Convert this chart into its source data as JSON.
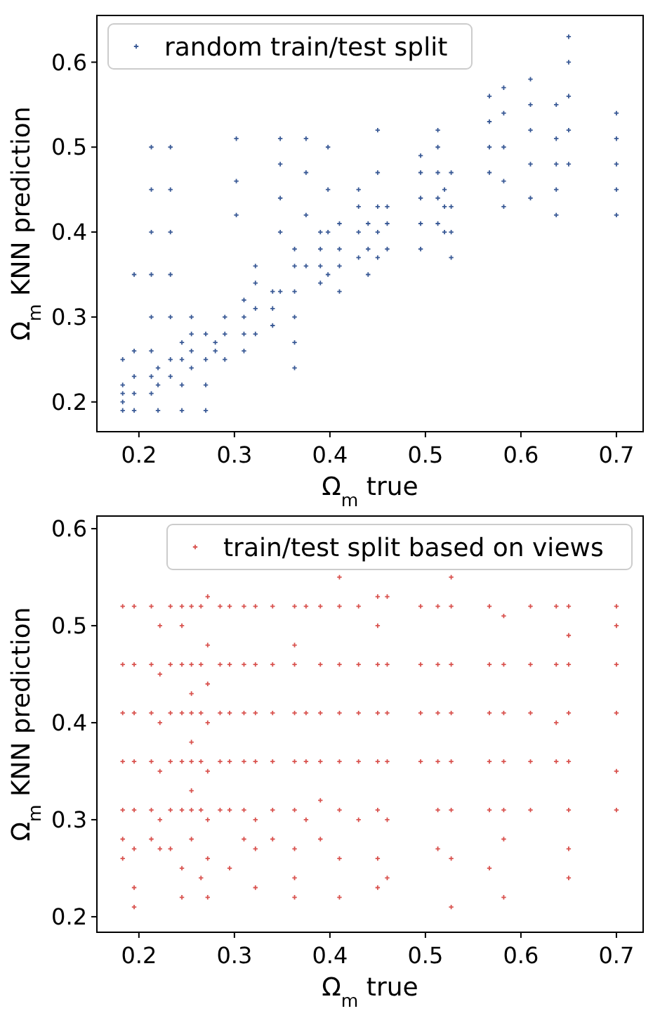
{
  "chart_data": [
    {
      "type": "scatter",
      "xlabel": "Ω$_{m}$ true",
      "ylabel": "Ω$_{m}$ KNN prediction",
      "xlim": [
        0.156,
        0.728
      ],
      "ylim": [
        0.165,
        0.655
      ],
      "xticks": [
        0.2,
        0.3,
        0.4,
        0.5,
        0.6,
        0.7
      ],
      "yticks": [
        0.2,
        0.3,
        0.4,
        0.5,
        0.6
      ],
      "grid": false,
      "legend": "top left",
      "marker": "cross",
      "series": [
        {
          "name": "random train/test split",
          "color": "#3a5a96",
          "x": [
            0.183,
            0.183,
            0.183,
            0.183,
            0.183,
            0.195,
            0.195,
            0.195,
            0.195,
            0.195,
            0.213,
            0.213,
            0.213,
            0.213,
            0.213,
            0.213,
            0.213,
            0.213,
            0.22,
            0.22,
            0.22,
            0.233,
            0.233,
            0.233,
            0.233,
            0.233,
            0.233,
            0.233,
            0.245,
            0.245,
            0.245,
            0.245,
            0.255,
            0.255,
            0.255,
            0.255,
            0.27,
            0.27,
            0.27,
            0.27,
            0.28,
            0.28,
            0.29,
            0.29,
            0.29,
            0.31,
            0.31,
            0.31,
            0.31,
            0.302,
            0.302,
            0.302,
            0.322,
            0.322,
            0.322,
            0.322,
            0.34,
            0.34,
            0.34,
            0.348,
            0.348,
            0.348,
            0.348,
            0.348,
            0.363,
            0.363,
            0.363,
            0.363,
            0.363,
            0.363,
            0.375,
            0.375,
            0.375,
            0.375,
            0.39,
            0.39,
            0.39,
            0.39,
            0.398,
            0.398,
            0.398,
            0.398,
            0.41,
            0.41,
            0.41,
            0.41,
            0.43,
            0.43,
            0.43,
            0.43,
            0.44,
            0.44,
            0.44,
            0.45,
            0.45,
            0.45,
            0.45,
            0.45,
            0.46,
            0.46,
            0.46,
            0.495,
            0.495,
            0.495,
            0.495,
            0.495,
            0.513,
            0.513,
            0.513,
            0.513,
            0.513,
            0.52,
            0.52,
            0.52,
            0.527,
            0.527,
            0.527,
            0.527,
            0.567,
            0.567,
            0.567,
            0.567,
            0.582,
            0.582,
            0.582,
            0.582,
            0.582,
            0.61,
            0.61,
            0.61,
            0.61,
            0.61,
            0.637,
            0.637,
            0.637,
            0.637,
            0.637,
            0.65,
            0.65,
            0.65,
            0.65,
            0.65,
            0.7,
            0.7,
            0.7,
            0.7,
            0.7
          ],
          "values": [
            0.19,
            0.2,
            0.21,
            0.22,
            0.25,
            0.19,
            0.21,
            0.23,
            0.26,
            0.35,
            0.21,
            0.23,
            0.26,
            0.3,
            0.35,
            0.4,
            0.45,
            0.5,
            0.19,
            0.22,
            0.24,
            0.23,
            0.25,
            0.3,
            0.35,
            0.4,
            0.45,
            0.5,
            0.19,
            0.22,
            0.25,
            0.27,
            0.24,
            0.26,
            0.28,
            0.3,
            0.19,
            0.22,
            0.25,
            0.28,
            0.26,
            0.27,
            0.25,
            0.28,
            0.3,
            0.26,
            0.28,
            0.3,
            0.32,
            0.42,
            0.46,
            0.51,
            0.28,
            0.31,
            0.34,
            0.36,
            0.29,
            0.31,
            0.33,
            0.33,
            0.4,
            0.44,
            0.48,
            0.51,
            0.24,
            0.27,
            0.3,
            0.33,
            0.36,
            0.38,
            0.36,
            0.42,
            0.47,
            0.51,
            0.34,
            0.36,
            0.38,
            0.4,
            0.35,
            0.4,
            0.45,
            0.5,
            0.33,
            0.36,
            0.38,
            0.41,
            0.37,
            0.4,
            0.43,
            0.45,
            0.35,
            0.38,
            0.41,
            0.37,
            0.4,
            0.43,
            0.47,
            0.52,
            0.38,
            0.41,
            0.43,
            0.38,
            0.41,
            0.44,
            0.47,
            0.49,
            0.41,
            0.44,
            0.47,
            0.5,
            0.52,
            0.4,
            0.43,
            0.45,
            0.37,
            0.4,
            0.43,
            0.47,
            0.47,
            0.5,
            0.53,
            0.56,
            0.43,
            0.46,
            0.5,
            0.54,
            0.57,
            0.44,
            0.48,
            0.52,
            0.55,
            0.58,
            0.42,
            0.45,
            0.48,
            0.51,
            0.55,
            0.48,
            0.52,
            0.56,
            0.6,
            0.63,
            0.42,
            0.45,
            0.48,
            0.51,
            0.54
          ]
        }
      ]
    },
    {
      "type": "scatter",
      "xlabel": "Ω$_{m}$ true",
      "ylabel": "Ω$_{m}$ KNN prediction",
      "xlim": [
        0.156,
        0.728
      ],
      "ylim": [
        0.184,
        0.613
      ],
      "xticks": [
        0.2,
        0.3,
        0.4,
        0.5,
        0.6,
        0.7
      ],
      "yticks": [
        0.2,
        0.3,
        0.4,
        0.5,
        0.6
      ],
      "grid": false,
      "legend": "top right",
      "marker": "cross",
      "series": [
        {
          "name": "train/test split based on views",
          "color": "#d9534f",
          "x": [
            0.183,
            0.183,
            0.183,
            0.183,
            0.183,
            0.183,
            0.183,
            0.195,
            0.195,
            0.195,
            0.195,
            0.195,
            0.195,
            0.195,
            0.195,
            0.213,
            0.213,
            0.213,
            0.213,
            0.213,
            0.213,
            0.222,
            0.222,
            0.222,
            0.222,
            0.222,
            0.222,
            0.233,
            0.233,
            0.233,
            0.233,
            0.233,
            0.233,
            0.245,
            0.245,
            0.245,
            0.245,
            0.245,
            0.245,
            0.245,
            0.245,
            0.255,
            0.255,
            0.255,
            0.255,
            0.255,
            0.255,
            0.255,
            0.255,
            0.255,
            0.265,
            0.265,
            0.265,
            0.265,
            0.265,
            0.265,
            0.272,
            0.272,
            0.272,
            0.272,
            0.272,
            0.272,
            0.272,
            0.272,
            0.285,
            0.285,
            0.285,
            0.285,
            0.285,
            0.295,
            0.295,
            0.295,
            0.295,
            0.295,
            0.295,
            0.31,
            0.31,
            0.31,
            0.31,
            0.31,
            0.31,
            0.322,
            0.322,
            0.322,
            0.322,
            0.322,
            0.322,
            0.322,
            0.34,
            0.34,
            0.34,
            0.34,
            0.34,
            0.34,
            0.363,
            0.363,
            0.363,
            0.363,
            0.363,
            0.363,
            0.363,
            0.363,
            0.363,
            0.375,
            0.375,
            0.375,
            0.375,
            0.39,
            0.39,
            0.39,
            0.39,
            0.39,
            0.39,
            0.41,
            0.41,
            0.41,
            0.41,
            0.41,
            0.41,
            0.41,
            0.41,
            0.43,
            0.43,
            0.43,
            0.43,
            0.43,
            0.45,
            0.45,
            0.45,
            0.45,
            0.45,
            0.45,
            0.45,
            0.45,
            0.46,
            0.46,
            0.46,
            0.46,
            0.46,
            0.46,
            0.495,
            0.495,
            0.495,
            0.495,
            0.513,
            0.513,
            0.513,
            0.513,
            0.513,
            0.513,
            0.527,
            0.527,
            0.527,
            0.527,
            0.527,
            0.527,
            0.527,
            0.527,
            0.567,
            0.567,
            0.567,
            0.567,
            0.567,
            0.567,
            0.582,
            0.582,
            0.582,
            0.582,
            0.582,
            0.582,
            0.582,
            0.61,
            0.61,
            0.61,
            0.61,
            0.61,
            0.637,
            0.637,
            0.637,
            0.637,
            0.65,
            0.65,
            0.65,
            0.65,
            0.65,
            0.65,
            0.65,
            0.65,
            0.7,
            0.7,
            0.7,
            0.7,
            0.7,
            0.7
          ],
          "values": [
            0.52,
            0.46,
            0.41,
            0.36,
            0.31,
            0.28,
            0.26,
            0.52,
            0.46,
            0.41,
            0.36,
            0.31,
            0.27,
            0.23,
            0.21,
            0.52,
            0.46,
            0.41,
            0.36,
            0.31,
            0.28,
            0.5,
            0.45,
            0.4,
            0.35,
            0.3,
            0.27,
            0.52,
            0.46,
            0.41,
            0.36,
            0.31,
            0.27,
            0.52,
            0.5,
            0.46,
            0.41,
            0.36,
            0.31,
            0.25,
            0.22,
            0.52,
            0.46,
            0.43,
            0.41,
            0.38,
            0.36,
            0.33,
            0.31,
            0.28,
            0.52,
            0.46,
            0.41,
            0.36,
            0.31,
            0.24,
            0.53,
            0.48,
            0.44,
            0.4,
            0.35,
            0.3,
            0.26,
            0.22,
            0.52,
            0.46,
            0.41,
            0.36,
            0.31,
            0.52,
            0.46,
            0.41,
            0.36,
            0.31,
            0.25,
            0.52,
            0.46,
            0.41,
            0.36,
            0.31,
            0.28,
            0.52,
            0.46,
            0.41,
            0.36,
            0.3,
            0.27,
            0.23,
            0.52,
            0.46,
            0.41,
            0.36,
            0.31,
            0.28,
            0.52,
            0.48,
            0.46,
            0.41,
            0.36,
            0.31,
            0.27,
            0.24,
            0.22,
            0.52,
            0.41,
            0.36,
            0.3,
            0.52,
            0.46,
            0.41,
            0.36,
            0.32,
            0.28,
            0.55,
            0.52,
            0.46,
            0.41,
            0.36,
            0.31,
            0.26,
            0.22,
            0.52,
            0.46,
            0.41,
            0.36,
            0.3,
            0.53,
            0.5,
            0.46,
            0.41,
            0.36,
            0.31,
            0.26,
            0.23,
            0.53,
            0.46,
            0.41,
            0.36,
            0.3,
            0.24,
            0.52,
            0.46,
            0.41,
            0.36,
            0.52,
            0.46,
            0.41,
            0.36,
            0.31,
            0.27,
            0.55,
            0.52,
            0.46,
            0.41,
            0.36,
            0.31,
            0.26,
            0.21,
            0.52,
            0.46,
            0.41,
            0.36,
            0.31,
            0.25,
            0.51,
            0.46,
            0.41,
            0.36,
            0.31,
            0.28,
            0.22,
            0.52,
            0.46,
            0.41,
            0.36,
            0.31,
            0.52,
            0.46,
            0.4,
            0.36,
            0.52,
            0.49,
            0.46,
            0.41,
            0.36,
            0.31,
            0.27,
            0.24,
            0.52,
            0.5,
            0.46,
            0.41,
            0.35,
            0.31
          ]
        }
      ]
    }
  ]
}
